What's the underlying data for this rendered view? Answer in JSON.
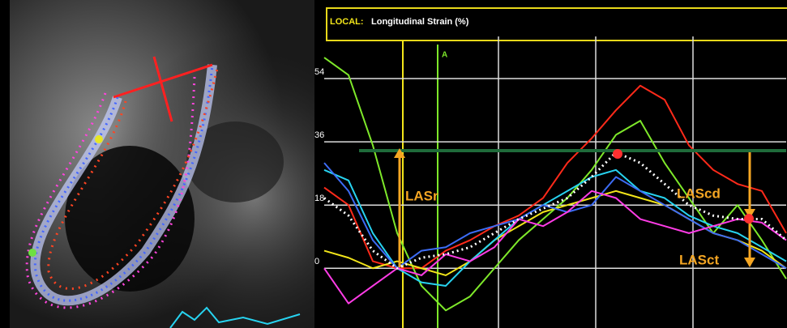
{
  "chart_data": {
    "type": "line",
    "panel_label": "LOCAL:",
    "title": "Longitudinal Strain (%)",
    "marker_label": "A",
    "annotations": [
      {
        "text": "LASr",
        "color": "#f5a623"
      },
      {
        "text": "LAScd",
        "color": "#f5a623"
      },
      {
        "text": "LASct",
        "color": "#f5a623"
      }
    ],
    "categories": [
      null,
      null,
      null,
      null,
      null,
      null,
      null,
      null,
      null,
      null,
      null,
      null,
      null,
      null,
      null,
      null,
      null,
      null,
      null,
      null
    ],
    "series": [
      {
        "color": "#ff2a1a",
        "values": [
          23,
          18,
          2,
          0,
          0,
          5,
          8,
          12,
          15,
          20,
          30,
          37,
          45,
          52,
          48,
          35,
          28,
          24,
          22,
          10
        ]
      },
      {
        "color": "#7ee82a",
        "values": [
          60,
          55,
          35,
          10,
          -5,
          -12,
          -8,
          0,
          8,
          14,
          20,
          28,
          38,
          42,
          30,
          20,
          10,
          18,
          8,
          -3
        ]
      },
      {
        "color": "#f2e51a",
        "values": [
          5,
          3,
          0,
          2,
          0,
          -2,
          2,
          8,
          12,
          16,
          18,
          20,
          22,
          20,
          18,
          14,
          10,
          8,
          5,
          0
        ]
      },
      {
        "color": "#27d3f0",
        "values": [
          28,
          25,
          10,
          0,
          -4,
          -5,
          2,
          8,
          14,
          18,
          22,
          26,
          28,
          22,
          20,
          15,
          12,
          10,
          6,
          2
        ]
      },
      {
        "color": "#3d6cf5",
        "values": [
          30,
          22,
          8,
          0,
          5,
          6,
          10,
          12,
          14,
          18,
          16,
          18,
          26,
          22,
          18,
          14,
          10,
          8,
          4,
          0
        ]
      },
      {
        "color": "#ff3ce6",
        "values": [
          0,
          -10,
          -5,
          0,
          -2,
          4,
          2,
          6,
          14,
          12,
          16,
          22,
          20,
          14,
          12,
          10,
          12,
          14,
          13,
          8
        ]
      },
      {
        "color": "#ffffff",
        "dashed": true,
        "values": [
          20,
          15,
          5,
          0,
          3,
          4,
          6,
          10,
          14,
          17,
          20,
          26,
          33,
          30,
          24,
          18,
          15,
          14,
          14,
          8
        ]
      }
    ],
    "reference_line": {
      "value": 33.5,
      "color": "#1f6b3a"
    },
    "ylim": [
      -17,
      66
    ],
    "yticks": [
      0,
      18,
      36,
      54
    ],
    "grid": true
  }
}
